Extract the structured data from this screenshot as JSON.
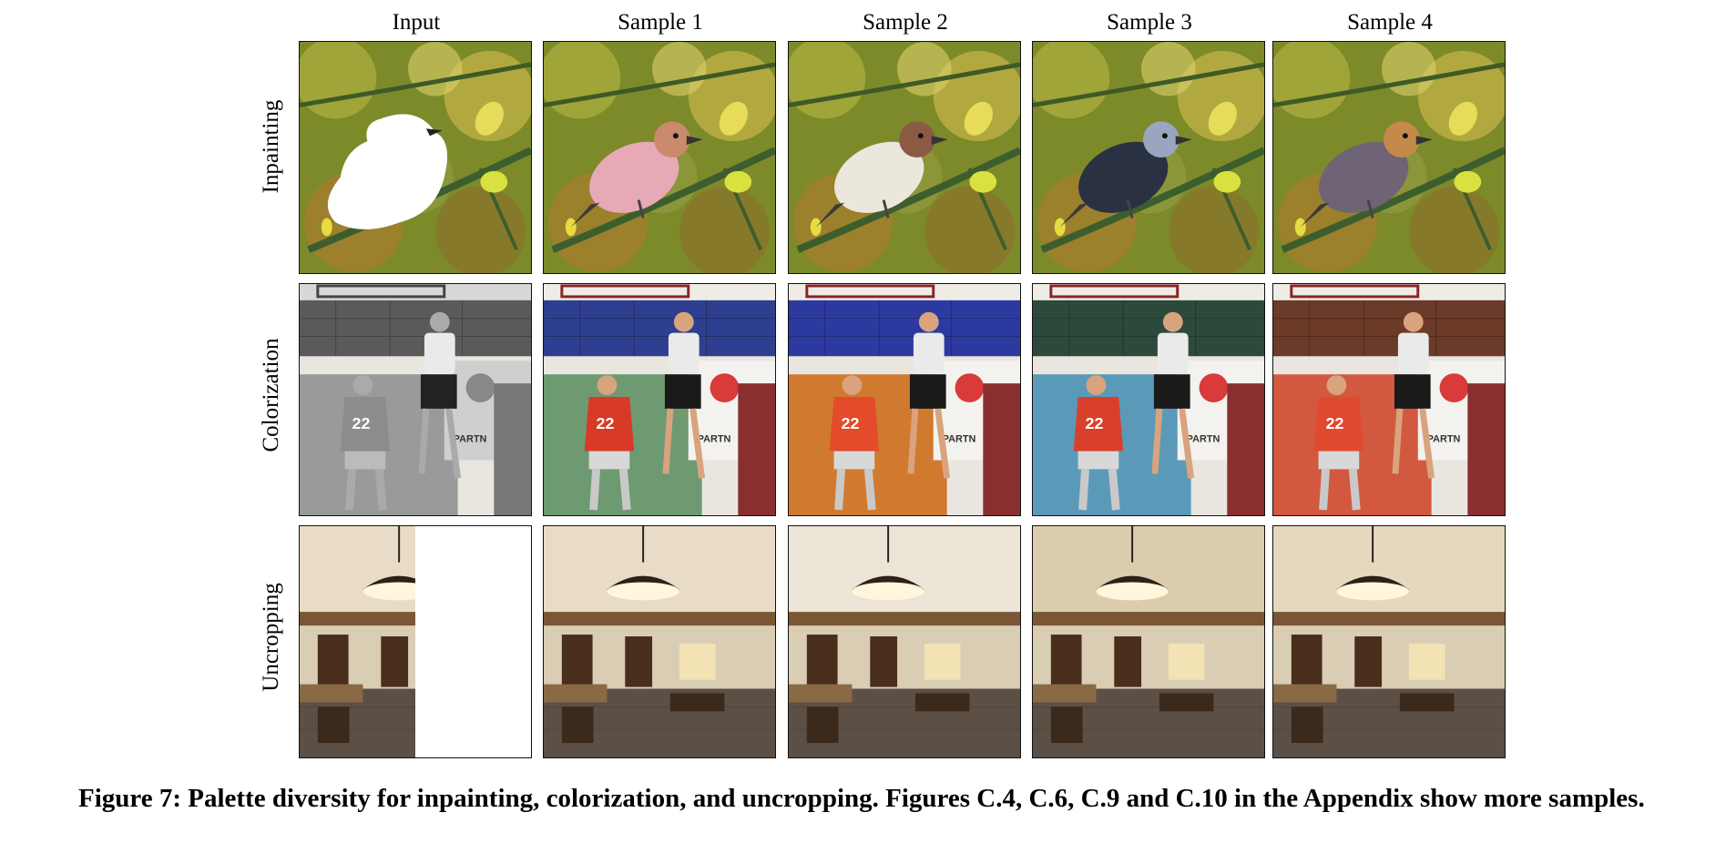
{
  "columns": [
    "Input",
    "Sample 1",
    "Sample 2",
    "Sample 3",
    "Sample 4"
  ],
  "rows": [
    "Inpainting",
    "Colorization",
    "Uncropping"
  ],
  "caption": "Figure 7: Palette diversity for inpainting, colorization, and uncropping. Figures C.4, C.6, C.9 and C.10 in the Appendix show more samples.",
  "tiles": {
    "inpainting": {
      "input": {
        "bird_color": "#ffffff",
        "masked": true
      },
      "samples": [
        {
          "bird_color": "#e7a9b6",
          "head": "#c98a6d"
        },
        {
          "bird_color": "#ece7dd",
          "head": "#8b5a45"
        },
        {
          "bird_color": "#2a3142",
          "head": "#9aa6bf"
        },
        {
          "bird_color": "#6e6475",
          "head": "#c58a49"
        }
      ]
    },
    "colorization": {
      "input": {
        "wall": "#5a5a5a",
        "lower": "#9a9a9a",
        "jersey": "#8c8c8c",
        "grayscale": true
      },
      "samples": [
        {
          "wall": "#2f3f8f",
          "lower": "#6e9a72",
          "jersey": "#d83a28"
        },
        {
          "wall": "#2c3aa0",
          "lower": "#d07a30",
          "jersey": "#e34b2a"
        },
        {
          "wall": "#2c4a3c",
          "lower": "#5a9ab8",
          "jersey": "#d9402c"
        },
        {
          "wall": "#6b3a28",
          "lower": "#d2593f",
          "jersey": "#e04a2e"
        }
      ]
    },
    "uncropping": {
      "input": {
        "cropped": true
      },
      "samples": [
        {
          "ceiling": "#e8dcc6"
        },
        {
          "ceiling": "#ece4d6"
        },
        {
          "ceiling": "#dcccae"
        },
        {
          "ceiling": "#e6d8bf"
        }
      ]
    }
  }
}
